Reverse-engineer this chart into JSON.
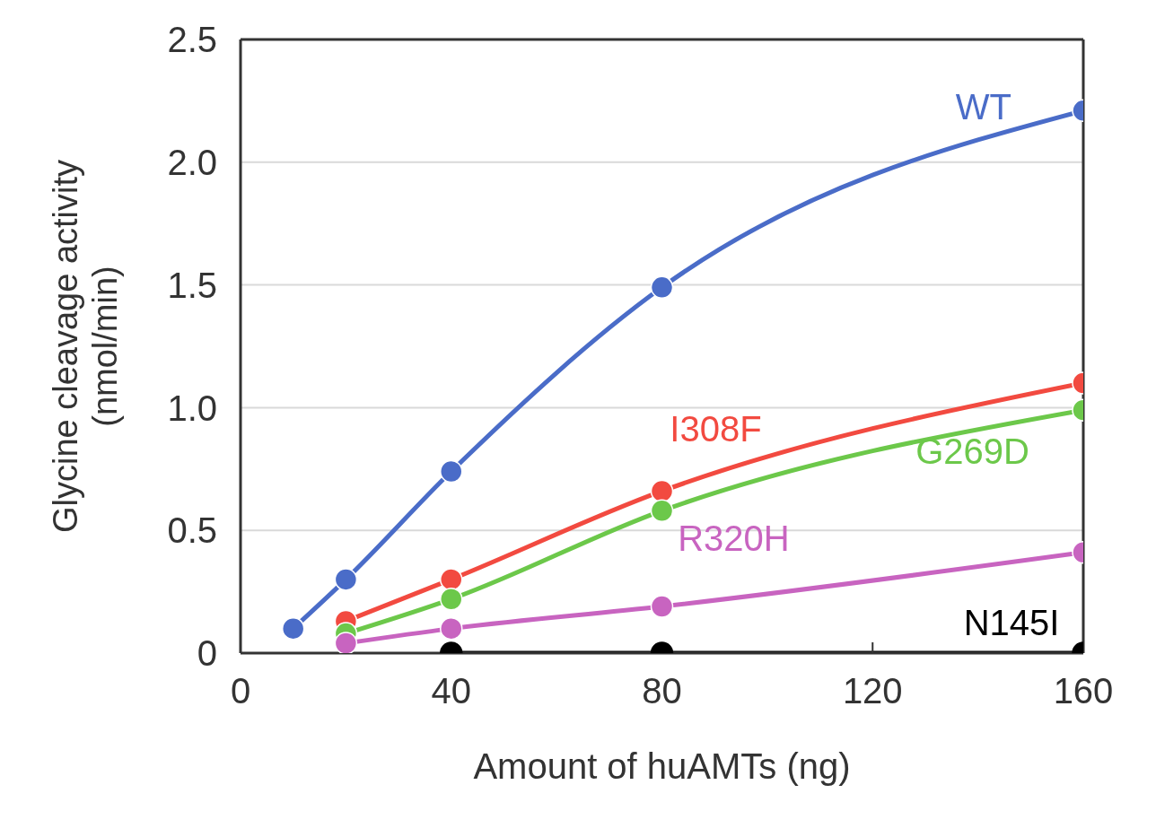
{
  "chart_data": {
    "type": "line",
    "xlabel": "Amount of huAMTs (ng)",
    "ylabel": "Glycine cleavage activity\n(nmol/min)",
    "xlim": [
      0,
      160
    ],
    "xticks": [
      0,
      40,
      80,
      120,
      160
    ],
    "ylim": [
      0,
      2.5
    ],
    "yticks": [
      0,
      0.5,
      {
        "value": 1,
        "label": "1.0"
      },
      1.5,
      {
        "value": 2,
        "label": "2.0"
      },
      2.5
    ],
    "grid": "y",
    "marker": "circle",
    "line_style": "solid",
    "series": [
      {
        "name": "WT",
        "color": "#4a6cc8",
        "x": [
          10,
          20,
          40,
          80,
          160
        ],
        "values": [
          0.1,
          0.3,
          0.74,
          1.49,
          2.21
        ]
      },
      {
        "name": "I308F",
        "color": "#f24a40",
        "x": [
          20,
          40,
          80,
          160
        ],
        "values": [
          0.13,
          0.3,
          0.66,
          1.1
        ]
      },
      {
        "name": "G269D",
        "color": "#6cc84a",
        "x": [
          20,
          40,
          80,
          160
        ],
        "values": [
          0.08,
          0.22,
          0.58,
          0.99
        ]
      },
      {
        "name": "R320H",
        "color": "#c864c0",
        "x": [
          20,
          40,
          80,
          160
        ],
        "values": [
          0.04,
          0.1,
          0.19,
          0.41
        ]
      },
      {
        "name": "N145I",
        "color": "#000000",
        "x": [
          40,
          80,
          160
        ],
        "values": [
          0,
          0,
          0
        ]
      }
    ]
  }
}
